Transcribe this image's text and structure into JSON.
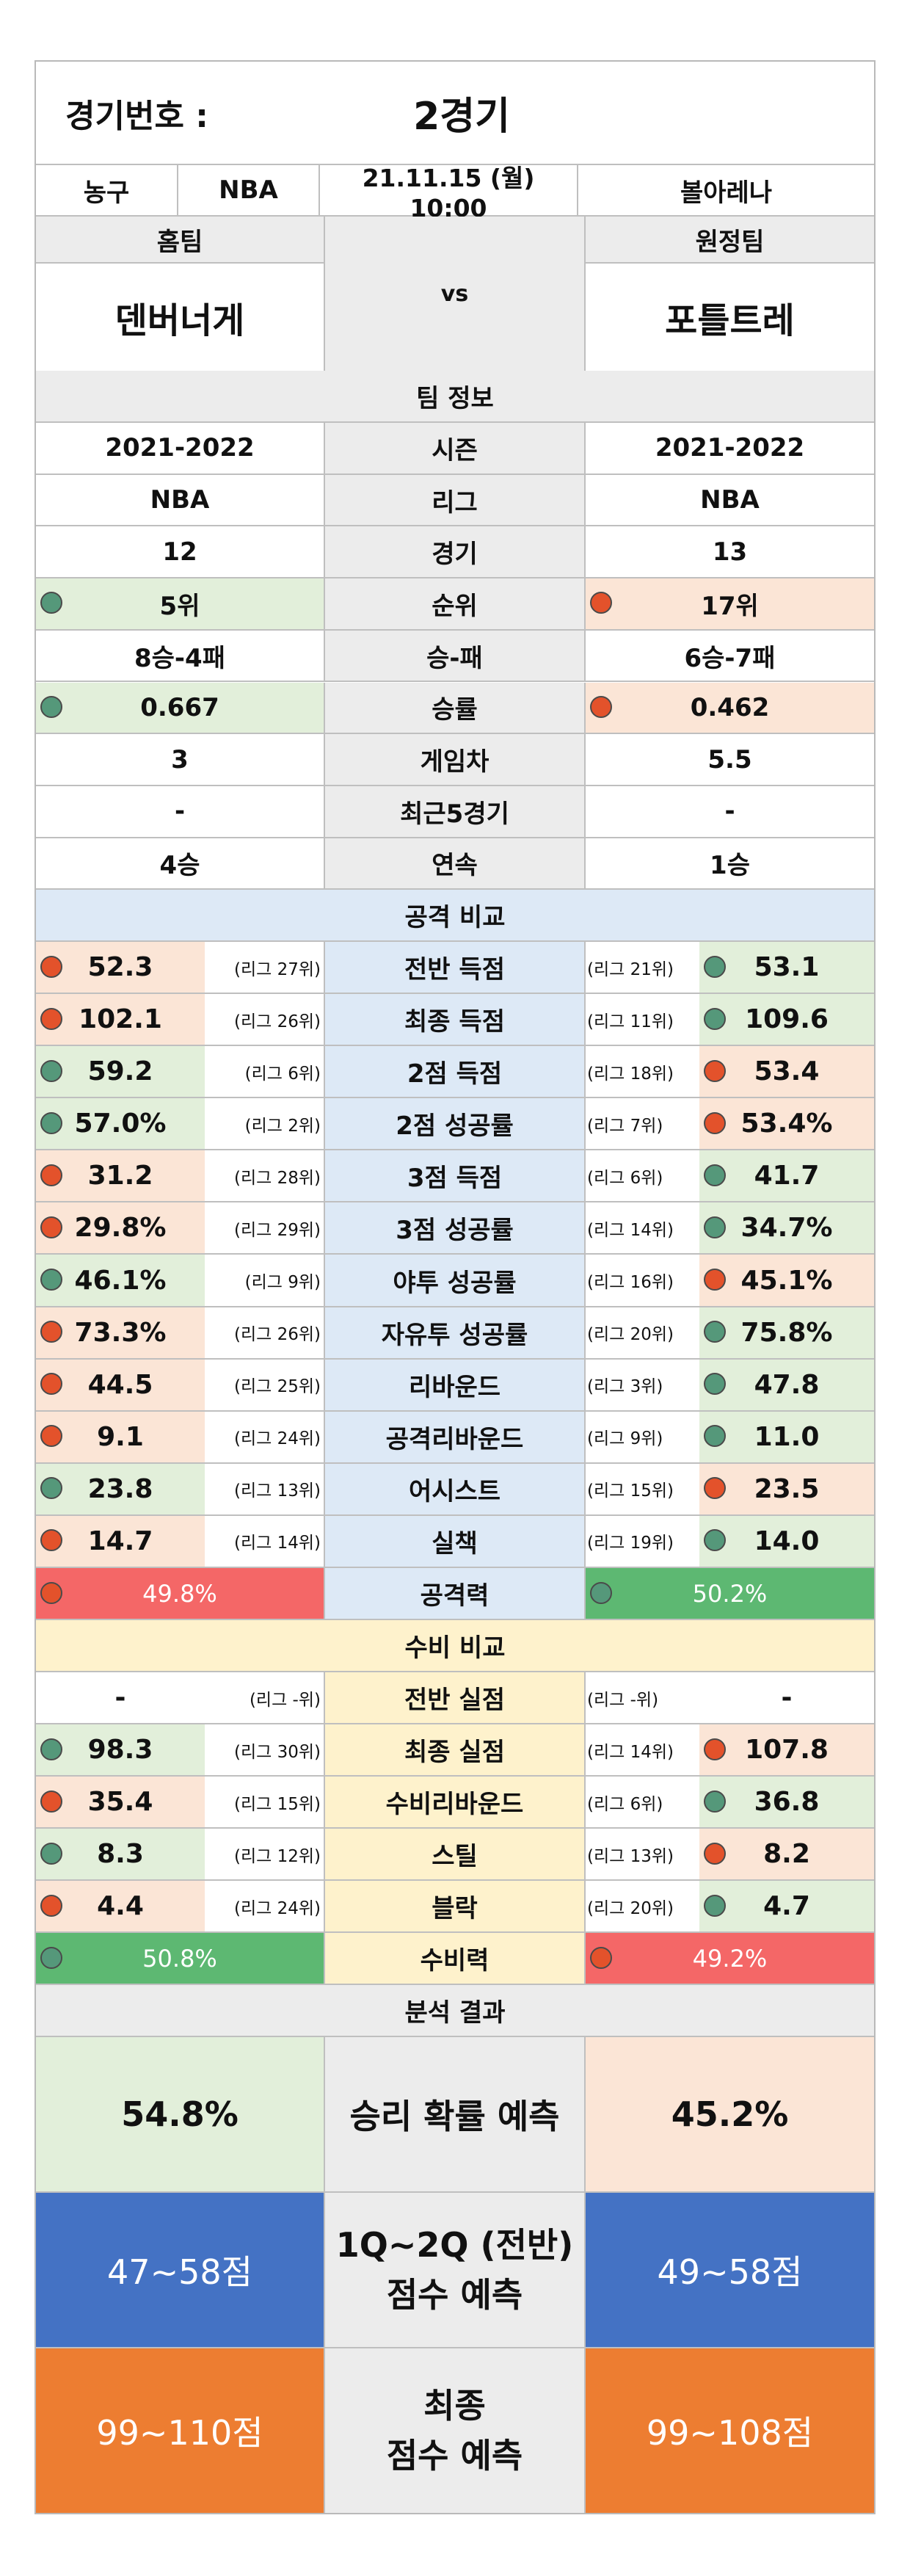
{
  "header": {
    "match_label": "경기번호 :",
    "match_value": "2경기",
    "sport": "농구",
    "league": "NBA",
    "datetime": "21.11.15 (월) 10:00",
    "venue": "볼아레나",
    "home_label": "홈팀",
    "away_label": "원정팀",
    "vs": "vs",
    "home_team": "덴버너게",
    "away_team": "포틀트레"
  },
  "team_info": {
    "title": "팀 정보",
    "rows": [
      {
        "label": "시즌",
        "home": "2021-2022",
        "away": "2021-2022",
        "home_dot": "",
        "away_dot": ""
      },
      {
        "label": "리그",
        "home": "NBA",
        "away": "NBA",
        "home_dot": "",
        "away_dot": ""
      },
      {
        "label": "경기",
        "home": "12",
        "away": "13",
        "home_dot": "",
        "away_dot": ""
      },
      {
        "label": "순위",
        "home": "5위",
        "away": "17위",
        "home_dot": "green",
        "away_dot": "red"
      },
      {
        "label": "승-패",
        "home": "8승-4패",
        "away": "6승-7패",
        "home_dot": "",
        "away_dot": ""
      },
      {
        "label": "승률",
        "home": "0.667",
        "away": "0.462",
        "home_dot": "green",
        "away_dot": "red"
      },
      {
        "label": "게임차",
        "home": "3",
        "away": "5.5",
        "home_dot": "",
        "away_dot": ""
      },
      {
        "label": "최근5경기",
        "home": "-",
        "away": "-",
        "home_dot": "",
        "away_dot": ""
      },
      {
        "label": "연속",
        "home": "4승",
        "away": "1승",
        "home_dot": "",
        "away_dot": ""
      }
    ]
  },
  "attack": {
    "title": "공격 비교",
    "rows": [
      {
        "label": "전반 득점",
        "home": "52.3",
        "home_rank": "(리그 27위)",
        "home_dot": "red",
        "away": "53.1",
        "away_rank": "(리그 21위)",
        "away_dot": "green"
      },
      {
        "label": "최종 득점",
        "home": "102.1",
        "home_rank": "(리그 26위)",
        "home_dot": "red",
        "away": "109.6",
        "away_rank": "(리그 11위)",
        "away_dot": "green"
      },
      {
        "label": "2점 득점",
        "home": "59.2",
        "home_rank": "(리그 6위)",
        "home_dot": "green",
        "away": "53.4",
        "away_rank": "(리그 18위)",
        "away_dot": "red"
      },
      {
        "label": "2점 성공률",
        "home": "57.0%",
        "home_rank": "(리그 2위)",
        "home_dot": "green",
        "away": "53.4%",
        "away_rank": "(리그 7위)",
        "away_dot": "red"
      },
      {
        "label": "3점 득점",
        "home": "31.2",
        "home_rank": "(리그 28위)",
        "home_dot": "red",
        "away": "41.7",
        "away_rank": "(리그 6위)",
        "away_dot": "green"
      },
      {
        "label": "3점 성공률",
        "home": "29.8%",
        "home_rank": "(리그 29위)",
        "home_dot": "red",
        "away": "34.7%",
        "away_rank": "(리그 14위)",
        "away_dot": "green"
      },
      {
        "label": "야투 성공률",
        "home": "46.1%",
        "home_rank": "(리그 9위)",
        "home_dot": "green",
        "away": "45.1%",
        "away_rank": "(리그 16위)",
        "away_dot": "red"
      },
      {
        "label": "자유투 성공률",
        "home": "73.3%",
        "home_rank": "(리그 26위)",
        "home_dot": "red",
        "away": "75.8%",
        "away_rank": "(리그 20위)",
        "away_dot": "green"
      },
      {
        "label": "리바운드",
        "home": "44.5",
        "home_rank": "(리그 25위)",
        "home_dot": "red",
        "away": "47.8",
        "away_rank": "(리그 3위)",
        "away_dot": "green"
      },
      {
        "label": "공격리바운드",
        "home": "9.1",
        "home_rank": "(리그 24위)",
        "home_dot": "red",
        "away": "11.0",
        "away_rank": "(리그 9위)",
        "away_dot": "green"
      },
      {
        "label": "어시스트",
        "home": "23.8",
        "home_rank": "(리그 13위)",
        "home_dot": "green",
        "away": "23.5",
        "away_rank": "(리그 15위)",
        "away_dot": "red"
      },
      {
        "label": "실책",
        "home": "14.7",
        "home_rank": "(리그 14위)",
        "home_dot": "red",
        "away": "14.0",
        "away_rank": "(리그 19위)",
        "away_dot": "green"
      }
    ],
    "power": {
      "label": "공격력",
      "home": "49.8%",
      "home_dot": "red",
      "away": "50.2%",
      "away_dot": "green"
    }
  },
  "defense": {
    "title": "수비 비교",
    "rows": [
      {
        "label": "전반 실점",
        "home": "-",
        "home_rank": "(리그 -위)",
        "home_dot": "",
        "away": "-",
        "away_rank": "(리그 -위)",
        "away_dot": ""
      },
      {
        "label": "최종 실점",
        "home": "98.3",
        "home_rank": "(리그 30위)",
        "home_dot": "green",
        "away": "107.8",
        "away_rank": "(리그 14위)",
        "away_dot": "red"
      },
      {
        "label": "수비리바운드",
        "home": "35.4",
        "home_rank": "(리그 15위)",
        "home_dot": "red",
        "away": "36.8",
        "away_rank": "(리그 6위)",
        "away_dot": "green"
      },
      {
        "label": "스틸",
        "home": "8.3",
        "home_rank": "(리그 12위)",
        "home_dot": "green",
        "away": "8.2",
        "away_rank": "(리그 13위)",
        "away_dot": "red"
      },
      {
        "label": "블락",
        "home": "4.4",
        "home_rank": "(리그 24위)",
        "home_dot": "red",
        "away": "4.7",
        "away_rank": "(리그 20위)",
        "away_dot": "green"
      }
    ],
    "power": {
      "label": "수비력",
      "home": "50.8%",
      "home_dot": "green",
      "away": "49.2%",
      "away_dot": "red"
    }
  },
  "analysis": {
    "title": "분석 결과",
    "win": {
      "label": "승리 확률 예측",
      "home": "54.8%",
      "away": "45.2%"
    },
    "half": {
      "label_line1": "1Q~2Q (전반)",
      "label_line2": "점수 예측",
      "home": "47~58점",
      "away": "49~58점"
    },
    "final": {
      "label_line1": "최종",
      "label_line2": "점수 예측",
      "home": "99~110점",
      "away": "99~108점"
    }
  },
  "colors": {
    "green_dot": "#55987a",
    "red_dot": "#e3522b",
    "attack_bg": "#dde9f6",
    "defense_bg": "#fef2cc",
    "good_bg": "#e2efda",
    "bad_bg": "#fbe5d6",
    "half_bg": "#4472c4",
    "final_bg": "#ed7d31"
  }
}
